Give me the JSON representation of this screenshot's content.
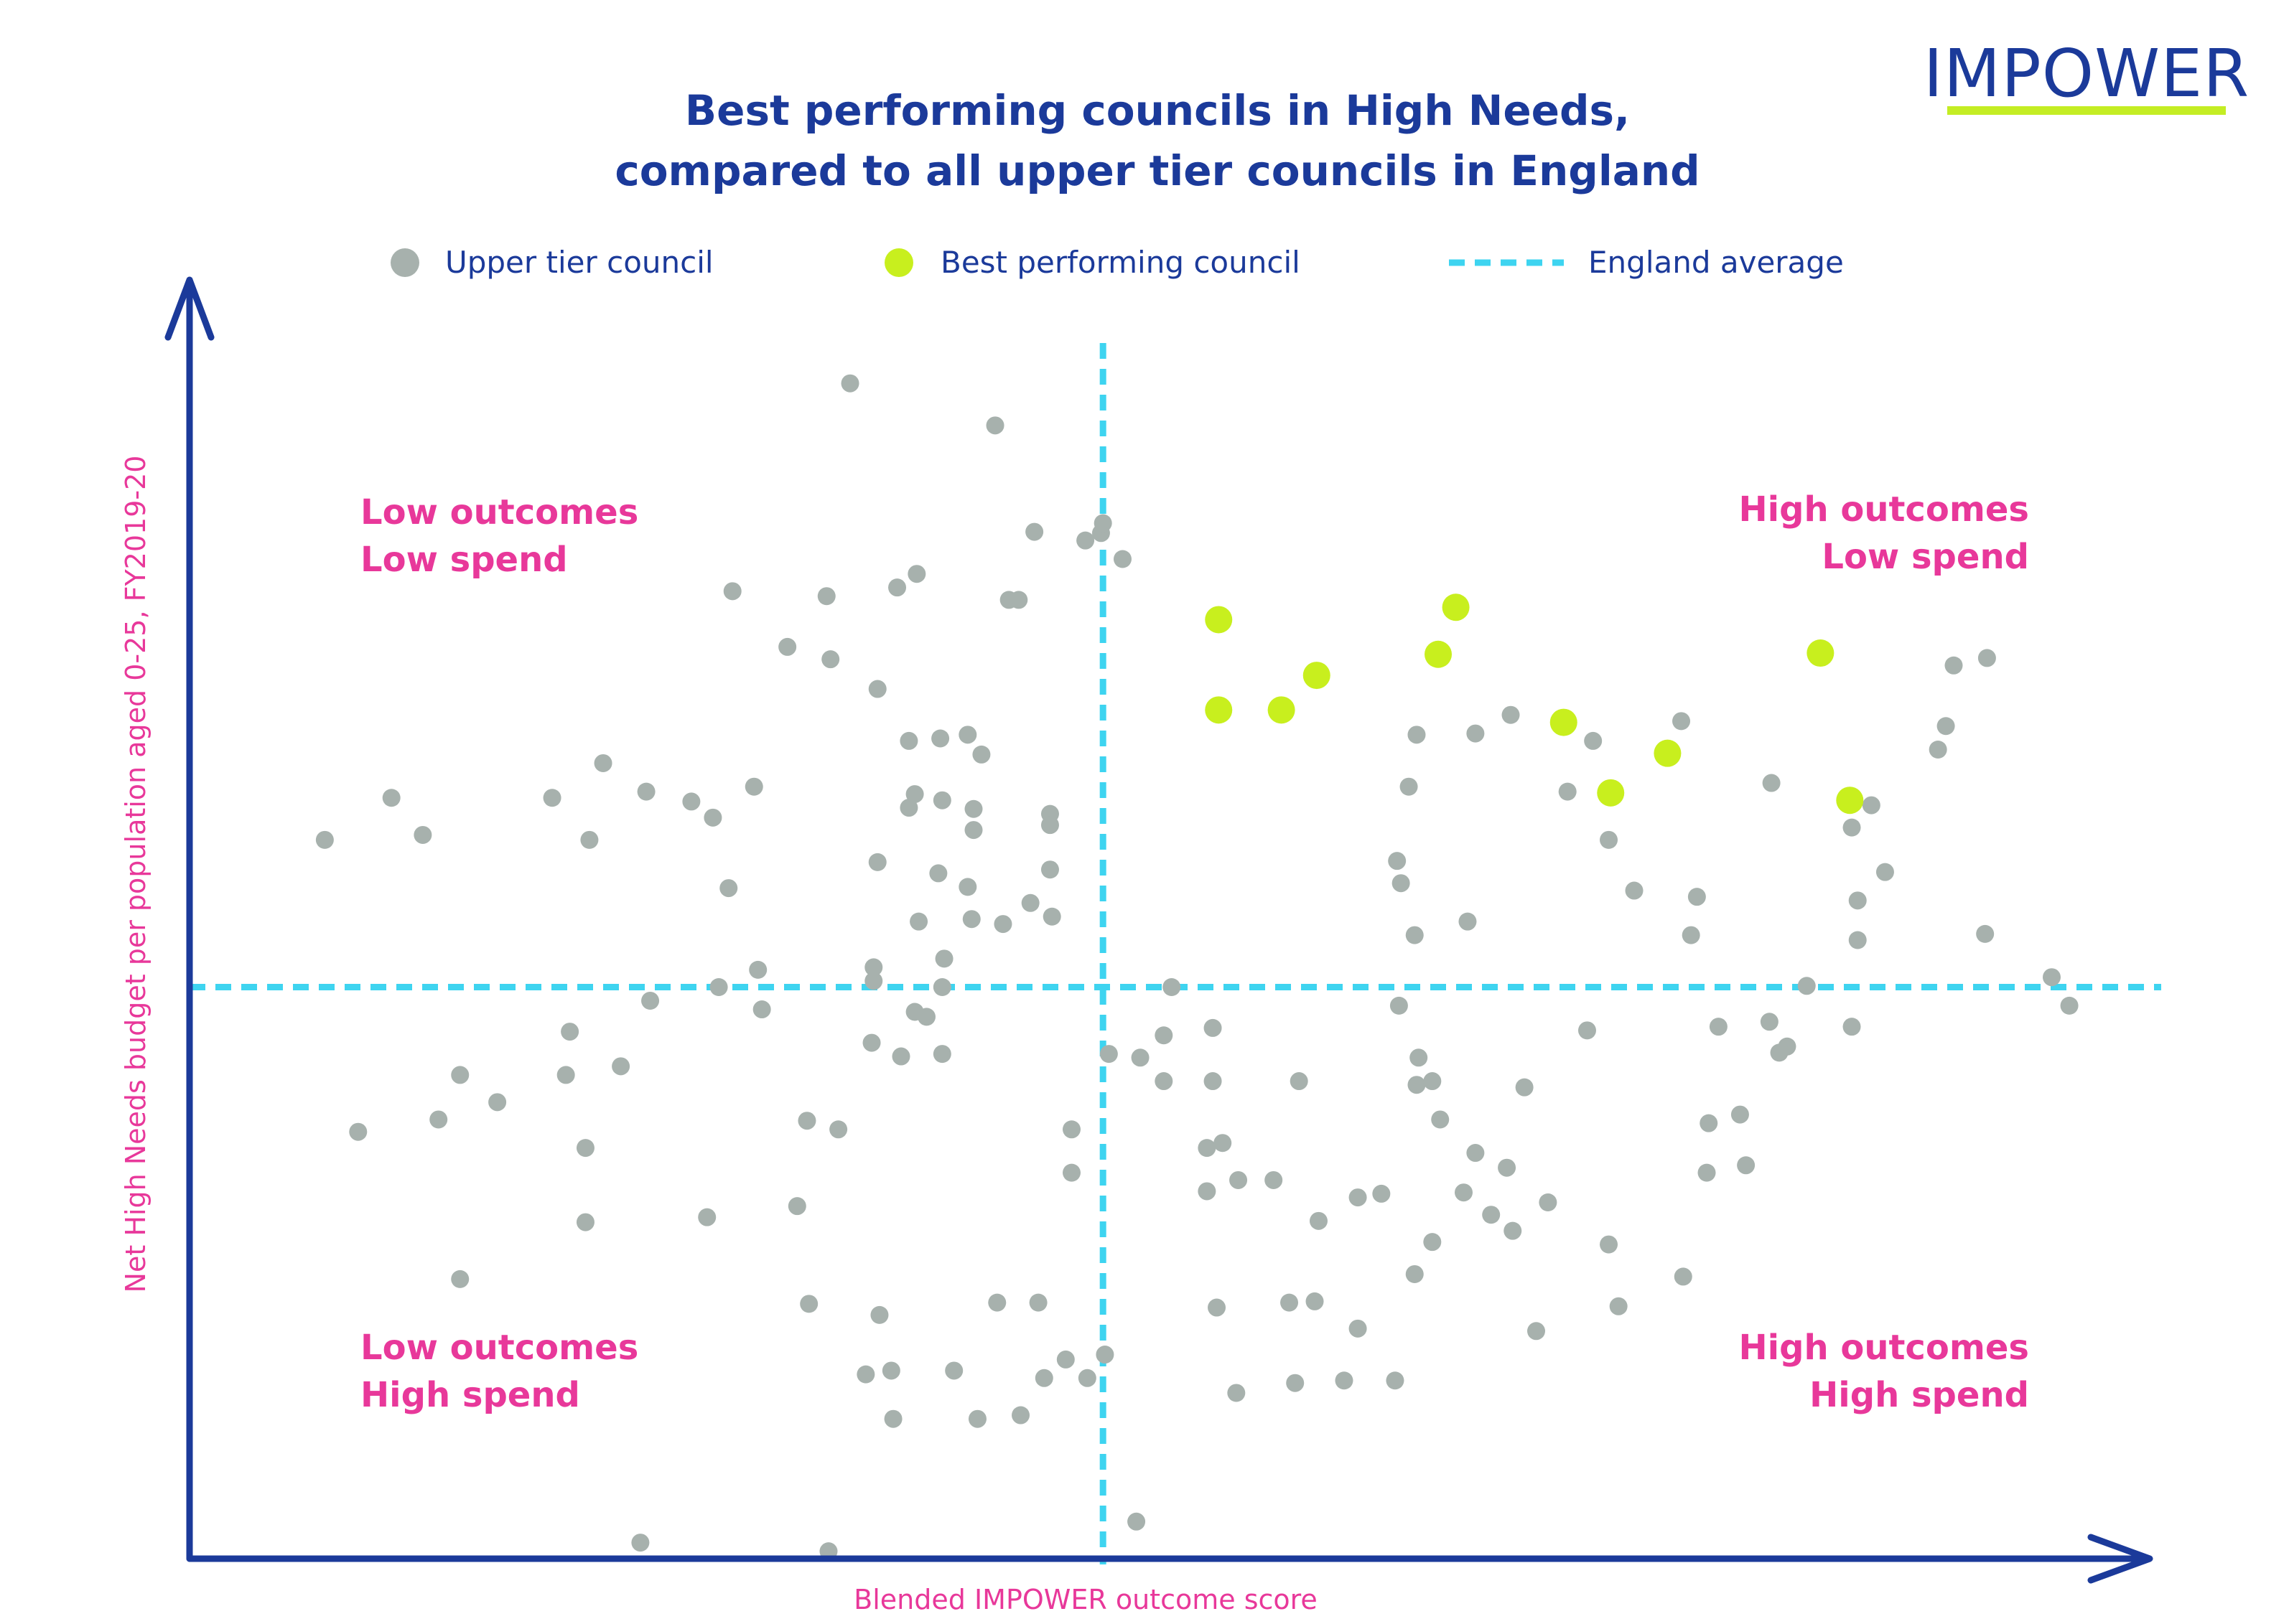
{
  "brand": {
    "name": "IMPOWER",
    "underline_color": "#c4ed24",
    "color": "#1b3a9a"
  },
  "title": {
    "line1": "Best performing councils in High Needs,",
    "line2": "compared to all upper tier councils in England"
  },
  "legend": {
    "upper_tier": "Upper tier council",
    "best": "Best performing council",
    "average": "England average"
  },
  "quadrants": {
    "top_left": {
      "line1": "Low outcomes",
      "line2": "Low spend"
    },
    "top_right": {
      "line1": "High outcomes",
      "line2": "Low spend"
    },
    "bottom_left": {
      "line1": "Low outcomes",
      "line2": "High spend"
    },
    "bottom_right": {
      "line1": "High outcomes",
      "line2": "High spend"
    }
  },
  "colors": {
    "upper_tier": "#a7b1ad",
    "best": "#c8ef1e",
    "average_line": "#3ed4f0",
    "axis": "#1b3a9a",
    "quadrant_text": "#e8389a",
    "title": "#1b3a9a"
  },
  "chart_data": {
    "type": "scatter",
    "xlabel": "Blended IMPOWER outcome score",
    "ylabel": "Net High Needs budget per population aged 0-25, FY2019-20",
    "xlim": [
      0,
      100
    ],
    "ylim": [
      0,
      100
    ],
    "axis_y_inverted": true,
    "note_scale": "Relative, unitless — spend increases downward, outcomes increase to the right",
    "england_average": {
      "x": 46.6,
      "y": 53.8
    },
    "series": [
      {
        "name": "Upper tier council",
        "points": [
          [
            6.9,
            41.9
          ],
          [
            10.3,
            38.5
          ],
          [
            11.9,
            41.5
          ],
          [
            18.5,
            38.5
          ],
          [
            21.1,
            35.7
          ],
          [
            20.4,
            41.9
          ],
          [
            23.3,
            38.0
          ],
          [
            25.6,
            38.8
          ],
          [
            28.8,
            37.6
          ],
          [
            27.7,
            21.8
          ],
          [
            26.7,
            40.1
          ],
          [
            27.5,
            45.8
          ],
          [
            30.5,
            26.3
          ],
          [
            32.5,
            22.2
          ],
          [
            36.1,
            21.5
          ],
          [
            37.1,
            20.4
          ],
          [
            32.7,
            27.3
          ],
          [
            35.1,
            29.7
          ],
          [
            38.4,
            38.7
          ],
          [
            38.2,
            44.6
          ],
          [
            35.1,
            43.7
          ],
          [
            36.7,
            33.9
          ],
          [
            36.7,
            39.3
          ],
          [
            37.0,
            38.2
          ],
          [
            34.9,
            52.2
          ],
          [
            37.0,
            55.8
          ],
          [
            38.4,
            53.8
          ],
          [
            37.2,
            48.5
          ],
          [
            38.5,
            51.5
          ],
          [
            38.3,
            33.7
          ],
          [
            39.7,
            45.7
          ],
          [
            40.0,
            41.1
          ],
          [
            39.9,
            48.3
          ],
          [
            40.0,
            39.4
          ],
          [
            41.5,
            48.7
          ],
          [
            43.9,
            44.3
          ],
          [
            44.0,
            48.1
          ],
          [
            43.9,
            39.8
          ],
          [
            42.9,
            47.0
          ],
          [
            43.9,
            40.7
          ],
          [
            33.7,
            5.0
          ],
          [
            41.1,
            8.4
          ],
          [
            43.1,
            17.0
          ],
          [
            45.7,
            17.7
          ],
          [
            41.8,
            22.5
          ],
          [
            42.3,
            22.5
          ],
          [
            46.5,
            17.1
          ],
          [
            46.6,
            16.3
          ],
          [
            47.6,
            19.2
          ],
          [
            39.7,
            33.4
          ],
          [
            40.4,
            35.0
          ],
          [
            37.6,
            56.2
          ],
          [
            38.4,
            59.2
          ],
          [
            36.3,
            59.4
          ],
          [
            34.8,
            58.3
          ],
          [
            34.9,
            53.3
          ],
          [
            29.0,
            52.4
          ],
          [
            29.2,
            55.6
          ],
          [
            27.0,
            53.8
          ],
          [
            23.5,
            54.9
          ],
          [
            22.0,
            60.2
          ],
          [
            19.4,
            57.4
          ],
          [
            13.8,
            60.9
          ],
          [
            12.7,
            64.5
          ],
          [
            15.7,
            63.1
          ],
          [
            19.2,
            60.9
          ],
          [
            8.6,
            65.5
          ],
          [
            20.2,
            66.8
          ],
          [
            13.8,
            77.4
          ],
          [
            20.2,
            72.8
          ],
          [
            26.4,
            72.4
          ],
          [
            31.5,
            64.6
          ],
          [
            33.1,
            65.3
          ],
          [
            31.0,
            71.5
          ],
          [
            31.6,
            79.4
          ],
          [
            35.2,
            80.3
          ],
          [
            34.5,
            85.1
          ],
          [
            35.9,
            88.7
          ],
          [
            41.2,
            79.3
          ],
          [
            35.8,
            84.8
          ],
          [
            39.0,
            84.8
          ],
          [
            43.3,
            79.3
          ],
          [
            43.6,
            85.4
          ],
          [
            44.7,
            83.9
          ],
          [
            40.2,
            88.7
          ],
          [
            45.8,
            85.4
          ],
          [
            42.4,
            88.4
          ],
          [
            23.0,
            98.7
          ],
          [
            32.6,
            99.4
          ],
          [
            48.3,
            97.0
          ],
          [
            46.7,
            83.5
          ],
          [
            45.0,
            65.3
          ],
          [
            45.0,
            68.8
          ],
          [
            46.9,
            59.2
          ],
          [
            48.5,
            59.5
          ],
          [
            50.1,
            53.8
          ],
          [
            49.7,
            57.7
          ],
          [
            49.7,
            61.4
          ],
          [
            52.2,
            57.1
          ],
          [
            52.2,
            61.4
          ],
          [
            51.9,
            66.8
          ],
          [
            52.7,
            66.4
          ],
          [
            51.9,
            70.3
          ],
          [
            53.5,
            69.4
          ],
          [
            56.1,
            79.3
          ],
          [
            55.3,
            69.4
          ],
          [
            59.6,
            70.8
          ],
          [
            62.7,
            59.5
          ],
          [
            62.6,
            61.7
          ],
          [
            63.8,
            64.5
          ],
          [
            63.4,
            61.4
          ],
          [
            65.6,
            67.2
          ],
          [
            67.2,
            68.4
          ],
          [
            65.0,
            70.4
          ],
          [
            66.4,
            72.2
          ],
          [
            67.5,
            73.5
          ],
          [
            63.4,
            74.4
          ],
          [
            60.8,
            70.5
          ],
          [
            56.6,
            61.4
          ],
          [
            53.4,
            86.6
          ],
          [
            56.4,
            85.8
          ],
          [
            61.5,
            85.6
          ],
          [
            68.7,
            81.6
          ],
          [
            58.9,
            85.6
          ],
          [
            52.4,
            79.7
          ],
          [
            57.4,
            79.2
          ],
          [
            62.5,
            77.0
          ],
          [
            57.6,
            72.7
          ],
          [
            59.6,
            81.4
          ],
          [
            69.3,
            71.2
          ],
          [
            72.4,
            74.6
          ],
          [
            72.9,
            79.6
          ],
          [
            76.2,
            77.2
          ],
          [
            77.4,
            68.8
          ],
          [
            79.4,
            68.2
          ],
          [
            77.5,
            64.8
          ],
          [
            79.1,
            64.1
          ],
          [
            81.1,
            59.1
          ],
          [
            81.5,
            58.6
          ],
          [
            80.6,
            56.6
          ],
          [
            82.5,
            53.7
          ],
          [
            85.1,
            50.0
          ],
          [
            85.1,
            46.8
          ],
          [
            86.5,
            44.5
          ],
          [
            85.8,
            39.1
          ],
          [
            84.8,
            40.9
          ],
          [
            91.6,
            49.5
          ],
          [
            95.9,
            55.3
          ],
          [
            95.0,
            53.0
          ],
          [
            89.2,
            34.6
          ],
          [
            89.6,
            32.7
          ],
          [
            80.7,
            37.3
          ],
          [
            76.1,
            32.3
          ],
          [
            65.6,
            33.3
          ],
          [
            62.6,
            33.4
          ],
          [
            62.2,
            37.6
          ],
          [
            61.6,
            43.6
          ],
          [
            61.8,
            45.4
          ],
          [
            65.2,
            48.5
          ],
          [
            67.4,
            31.8
          ],
          [
            70.3,
            38.0
          ],
          [
            71.6,
            33.9
          ],
          [
            72.4,
            41.9
          ],
          [
            73.7,
            46.0
          ],
          [
            76.9,
            46.5
          ],
          [
            76.6,
            49.6
          ],
          [
            78.0,
            57.0
          ],
          [
            71.3,
            57.3
          ],
          [
            68.1,
            61.9
          ],
          [
            61.7,
            55.3
          ],
          [
            62.5,
            49.6
          ],
          [
            84.8,
            57.0
          ],
          [
            90.0,
            27.8
          ],
          [
            91.7,
            27.2
          ]
        ]
      },
      {
        "name": "Best performing council",
        "points": [
          [
            52.5,
            31.4
          ],
          [
            52.5,
            24.1
          ],
          [
            55.7,
            31.4
          ],
          [
            57.5,
            28.6
          ],
          [
            63.7,
            26.9
          ],
          [
            64.6,
            23.1
          ],
          [
            70.1,
            32.4
          ],
          [
            72.5,
            38.1
          ],
          [
            75.4,
            34.9
          ],
          [
            83.2,
            26.8
          ],
          [
            84.7,
            38.7
          ]
        ]
      }
    ]
  }
}
